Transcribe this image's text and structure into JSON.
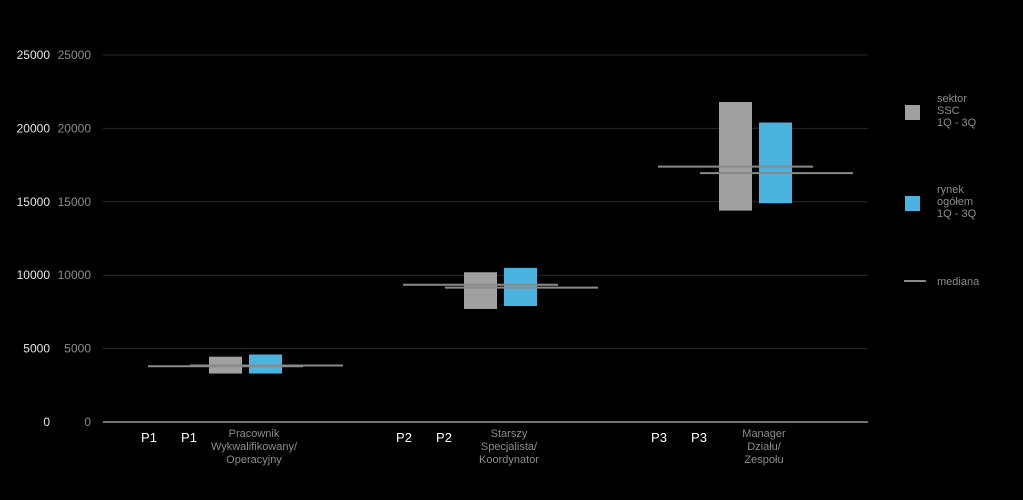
{
  "chart_data": {
    "type": "box",
    "y_axis": {
      "min": 0,
      "max": 25000,
      "ticks": [
        0,
        5000,
        10000,
        15000,
        20000,
        25000
      ]
    },
    "categories": [
      {
        "code_a": "P1",
        "code_b": "P1",
        "name_lines": [
          "Pracownik",
          "Wykwalifikowany/",
          "Operacyjny"
        ]
      },
      {
        "code_a": "P2",
        "code_b": "P2",
        "name_lines": [
          "Starszy",
          "Specjalista/",
          "Koordynator"
        ]
      },
      {
        "code_a": "P3",
        "code_b": "P3",
        "name_lines": [
          "Manager",
          "Działu/",
          "Zespołu"
        ]
      }
    ],
    "series": [
      {
        "name_lines": [
          "sektor",
          "SSC",
          "1Q - 3Q"
        ],
        "color": "#a0a0a0",
        "ranges": [
          [
            3300,
            4450
          ],
          [
            7700,
            10200
          ],
          [
            14400,
            21800
          ]
        ],
        "median": [
          3800,
          9350,
          17400
        ]
      },
      {
        "name_lines": [
          "rynek",
          "ogółem",
          "1Q - 3Q"
        ],
        "color": "#4ab3e0",
        "ranges": [
          [
            3300,
            4600
          ],
          [
            7900,
            10500
          ],
          [
            14900,
            20400
          ]
        ],
        "median": [
          3850,
          9150,
          16950
        ]
      }
    ],
    "legend": {
      "position": "right",
      "median_label": "mediana"
    },
    "colors": {
      "background": "#000000",
      "grid": "#2a2a2a",
      "axis": "#9a9a9a",
      "median": "#8a8a8a"
    }
  }
}
